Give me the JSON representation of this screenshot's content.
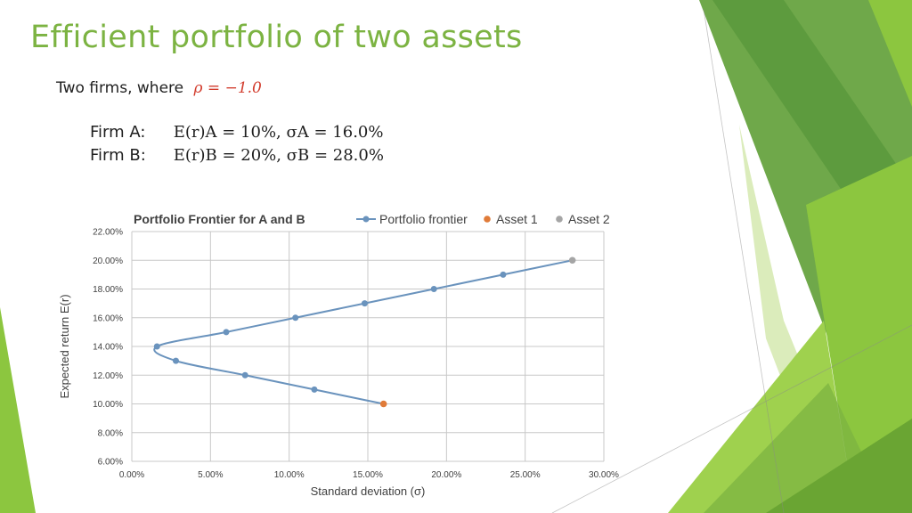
{
  "title": "Efficient portfolio of two assets",
  "intro": {
    "text": "Two firms, where",
    "condition": "ρ = −1.0"
  },
  "firms": [
    {
      "label": "Firm A:",
      "formula": "E(r)A = 10%, σA = 16.0%"
    },
    {
      "label": "Firm B:",
      "formula": "E(r)B = 20%, σB = 28.0%"
    }
  ],
  "colors": {
    "title": "#7cb342",
    "accent_green": "#7cb342",
    "condition": "#d23c2d"
  },
  "chart_data": {
    "type": "scatter",
    "title": "Portfolio Frontier for A and B",
    "xlabel": "Standard deviation (σ)",
    "ylabel": "Expected return E(r)",
    "xlim": [
      0,
      30
    ],
    "ylim": [
      6,
      22
    ],
    "x_ticks": [
      "0.00%",
      "5.00%",
      "10.00%",
      "15.00%",
      "20.00%",
      "25.00%",
      "30.00%"
    ],
    "y_ticks": [
      "6.00%",
      "8.00%",
      "10.00%",
      "12.00%",
      "14.00%",
      "16.00%",
      "18.00%",
      "20.00%",
      "22.00%"
    ],
    "grid": true,
    "legend_position": "top",
    "series": [
      {
        "name": "Portfolio frontier",
        "color": "#6a93bd",
        "style": "line-markers",
        "x": [
          16.0,
          11.6,
          7.2,
          2.8,
          1.6,
          6.0,
          10.4,
          14.8,
          19.2,
          23.6,
          28.0
        ],
        "y": [
          10,
          11,
          12,
          13,
          14,
          15,
          16,
          17,
          18,
          19,
          20
        ]
      },
      {
        "name": "Asset 1",
        "color": "#e07b39",
        "style": "marker",
        "x": [
          16.0
        ],
        "y": [
          10
        ]
      },
      {
        "name": "Asset 2",
        "color": "#a5a5a5",
        "style": "marker",
        "x": [
          28.0
        ],
        "y": [
          20
        ]
      }
    ]
  }
}
